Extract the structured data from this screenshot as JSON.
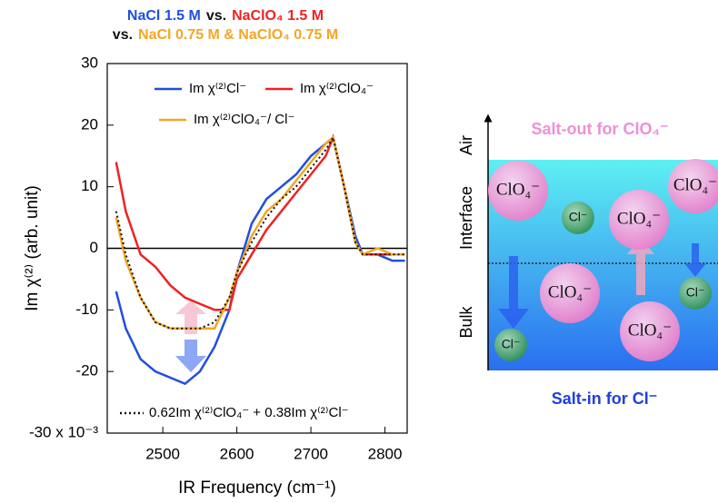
{
  "chart_data": {
    "type": "line",
    "title_lines": [
      [
        {
          "text": "NaCl 1.5 M",
          "color": "#1f4fe0"
        },
        {
          "text": "vs.",
          "color": "#111111"
        },
        {
          "text": "NaClO₄ 1.5 M",
          "color": "#ee2222"
        }
      ],
      [
        {
          "text": "vs.",
          "color": "#111111"
        },
        {
          "text": "NaCl 0.75 M & NaClO₄ 0.75 M",
          "color": "#f5a623"
        }
      ]
    ],
    "x_label": "IR Frequency (cm⁻¹)",
    "y_label": "Im χ⁽²⁾ (arb. unit)",
    "x": [
      2437,
      2450,
      2470,
      2490,
      2510,
      2530,
      2550,
      2570,
      2590,
      2600,
      2620,
      2640,
      2660,
      2680,
      2700,
      2720,
      2730,
      2745,
      2760,
      2770,
      2790,
      2810,
      2827
    ],
    "series": [
      {
        "name": "Im χ⁽²⁾Cl⁻",
        "color": "#1f4fe0",
        "style": "solid",
        "values": [
          -7,
          -13,
          -18,
          -20,
          -21,
          -22,
          -20,
          -16,
          -10,
          -4,
          4,
          8,
          10,
          12,
          15,
          17,
          18,
          10,
          2,
          -1,
          -1,
          -2,
          -2
        ]
      },
      {
        "name": "Im χ⁽²⁾ClO₄⁻",
        "color": "#ee2222",
        "style": "solid",
        "values": [
          14,
          6,
          -1,
          -3,
          -6,
          -8,
          -9,
          -10,
          -10,
          -5,
          -1,
          3,
          6,
          9,
          12,
          15,
          18,
          10,
          1,
          -1,
          -1,
          -1,
          -1
        ]
      },
      {
        "name": "Im χ⁽²⁾ClO₄⁻/ Cl⁻",
        "color": "#f5a623",
        "style": "solid",
        "values": [
          5,
          -2,
          -8,
          -12,
          -13,
          -13,
          -13,
          -13,
          -8,
          -4,
          2,
          6,
          8,
          11,
          14,
          17,
          18,
          10,
          1,
          -1,
          0,
          -1,
          -1
        ]
      },
      {
        "name": "0.62Im χ⁽²⁾ClO₄⁻ + 0.38Im χ⁽²⁾Cl⁻",
        "color": "#111111",
        "style": "dotted",
        "values": [
          6,
          -1,
          -8,
          -12,
          -13,
          -13,
          -13,
          -12,
          -8,
          -4,
          1,
          5,
          8,
          10,
          13,
          16,
          18,
          10,
          1,
          -1,
          -1,
          -1,
          -1
        ]
      }
    ],
    "xlim": [
      2425,
      2830
    ],
    "ylim": [
      -30,
      30
    ],
    "xticks": [
      2500,
      2600,
      2700,
      2800
    ],
    "yticks": [
      30,
      20,
      10,
      0,
      -10,
      -20,
      {
        "value": -30,
        "label": "-30 x 10⁻³"
      }
    ],
    "zero_line": true
  },
  "diagram": {
    "axis_labels": [
      "Air",
      "Interface",
      "Bulk"
    ],
    "salt_out": "Salt-out for ClO₄⁻",
    "salt_in": "Salt-in for Cl⁻",
    "particles": [
      "ClO₄⁻",
      "Cl⁻",
      "ClO₄⁻",
      "ClO₄⁻",
      "ClO₄⁻",
      "Cl⁻",
      "ClO₄⁻",
      "Cl⁻"
    ]
  }
}
